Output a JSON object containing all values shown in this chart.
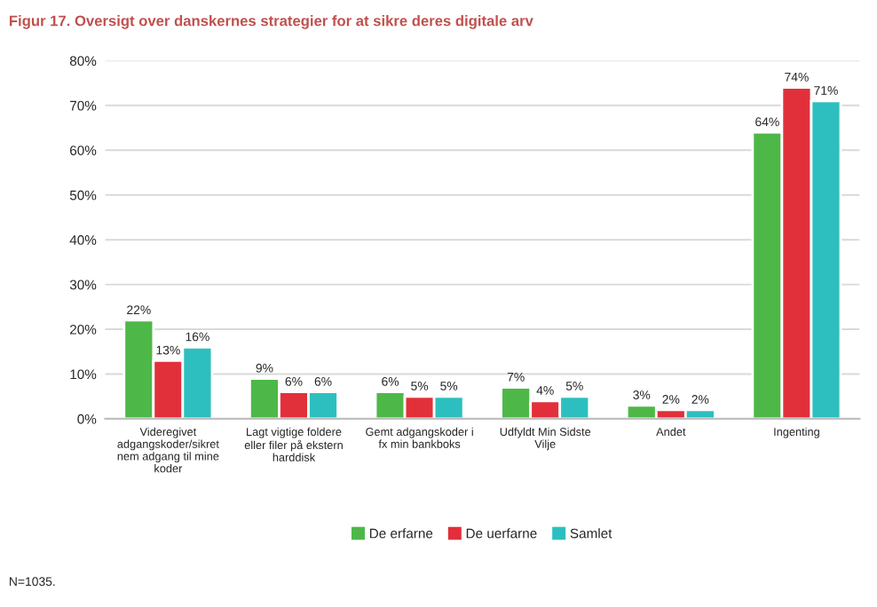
{
  "chart_data": {
    "type": "bar",
    "title": "Figur 17. Oversigt over danskernes strategier for at sikre deres digitale arv",
    "categories": [
      "Videregivet\nadgangskoder/sikret\nnem adgang til mine\nkoder",
      "Lagt vigtige foldere\neller filer på ekstern\nharddisk",
      "Gemt adgangskoder i\nfx min bankboks",
      "Udfyldt Min Sidste\nVilje",
      "Andet",
      "Ingenting"
    ],
    "series": [
      {
        "name": "De erfarne",
        "color": "#4db848",
        "values": [
          22,
          9,
          6,
          7,
          3,
          64
        ],
        "value_labels": [
          "22%",
          "9%",
          "6%",
          "7%",
          "3%",
          "64%"
        ]
      },
      {
        "name": "De uerfarne",
        "color": "#e2303a",
        "values": [
          13,
          6,
          5,
          4,
          2,
          74
        ],
        "value_labels": [
          "13%",
          "6%",
          "5%",
          "4%",
          "2%",
          "74%"
        ]
      },
      {
        "name": "Samlet",
        "color": "#2dbfbf",
        "values": [
          16,
          6,
          5,
          5,
          2,
          71
        ],
        "value_labels": [
          "16%",
          "6%",
          "5%",
          "5%",
          "2%",
          "71%"
        ]
      }
    ],
    "ylim": [
      0,
      80
    ],
    "yticks": [
      {
        "value": 0,
        "label": "0%"
      },
      {
        "value": 10,
        "label": "10%"
      },
      {
        "value": 20,
        "label": "20%"
      },
      {
        "value": 30,
        "label": "30%"
      },
      {
        "value": 40,
        "label": "40%"
      },
      {
        "value": 50,
        "label": "50%"
      },
      {
        "value": 60,
        "label": "60%"
      },
      {
        "value": 70,
        "label": "70%"
      },
      {
        "value": 80,
        "label": "80%"
      }
    ],
    "grid": "y",
    "legend": "bottom",
    "annotations": [
      "N=1035."
    ]
  }
}
